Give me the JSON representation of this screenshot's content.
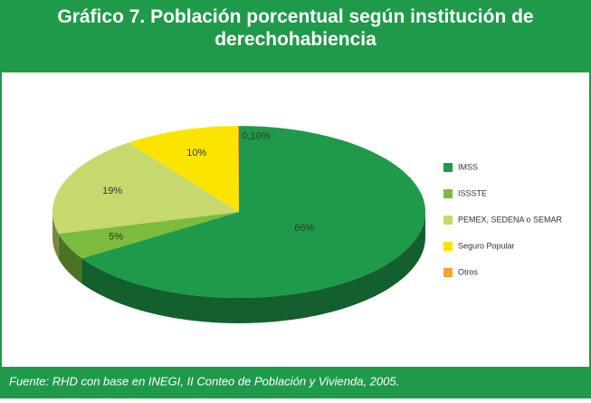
{
  "chart_data": {
    "type": "pie",
    "title": "Gráfico 7. Población porcentual según institución de derechohabiencia",
    "categories": [
      "IMSS",
      "ISSSTE",
      "PEMEX, SEDENA o SEMAR",
      "Seguro Popular",
      "Otros"
    ],
    "values": [
      66,
      5,
      19,
      10,
      0.1
    ],
    "value_labels": [
      "66%",
      "5%",
      "19%",
      "10%",
      "0,10%"
    ],
    "colors": [
      "#1f9a4a",
      "#7cbb3d",
      "#c6d86e",
      "#fbe400",
      "#f2a43a"
    ],
    "legend": "right",
    "source": "Fuente: RHD con base en  INEGI, II Conteo de Población y Vivienda, 2005."
  }
}
